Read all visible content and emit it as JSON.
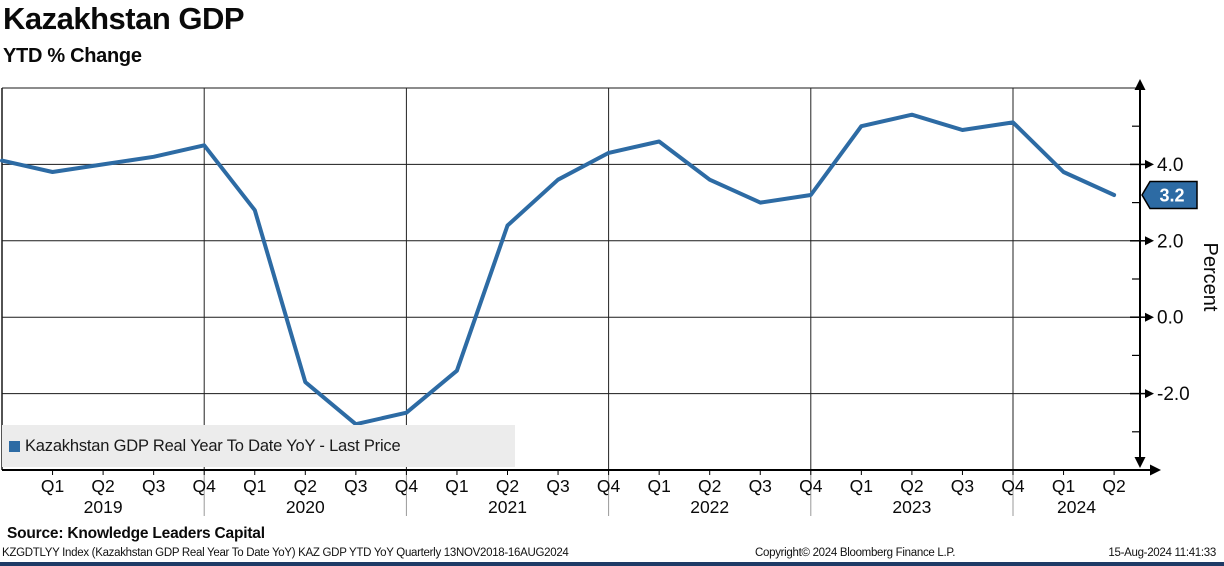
{
  "header": {
    "title": "Kazakhstan GDP",
    "subtitle": "YTD % Change"
  },
  "chart_data": {
    "type": "line",
    "title": "Kazakhstan GDP",
    "subtitle": "YTD % Change",
    "ylabel": "Percent",
    "ylim": [
      -4.0,
      6.0
    ],
    "y_major_ticks": [
      4.0,
      2.0,
      0.0,
      -2.0
    ],
    "y_minor_ticks": [
      5.0,
      3.0,
      1.0,
      -1.0,
      -3.0
    ],
    "grid": true,
    "legend_position": "bottom-left",
    "line_color": "#2d6ba4",
    "last_price": "3.2",
    "series": [
      {
        "name": "Kazakhstan GDP Real Year To Date YoY - Last Price",
        "data": [
          {
            "period": "Q4 2018",
            "value": 4.1
          },
          {
            "period": "Q1 2019",
            "value": 3.8
          },
          {
            "period": "Q2 2019",
            "value": 4.0
          },
          {
            "period": "Q3 2019",
            "value": 4.2
          },
          {
            "period": "Q4 2019",
            "value": 4.5
          },
          {
            "period": "Q1 2020",
            "value": 2.8
          },
          {
            "period": "Q2 2020",
            "value": -1.7
          },
          {
            "period": "Q3 2020",
            "value": -2.8
          },
          {
            "period": "Q4 2020",
            "value": -2.5
          },
          {
            "period": "Q1 2021",
            "value": -1.4
          },
          {
            "period": "Q2 2021",
            "value": 2.4
          },
          {
            "period": "Q3 2021",
            "value": 3.6
          },
          {
            "period": "Q4 2021",
            "value": 4.3
          },
          {
            "period": "Q1 2022",
            "value": 4.6
          },
          {
            "period": "Q2 2022",
            "value": 3.6
          },
          {
            "period": "Q3 2022",
            "value": 3.0
          },
          {
            "period": "Q4 2022",
            "value": 3.2
          },
          {
            "period": "Q1 2023",
            "value": 5.0
          },
          {
            "period": "Q2 2023",
            "value": 5.3
          },
          {
            "period": "Q3 2023",
            "value": 4.9
          },
          {
            "period": "Q4 2023",
            "value": 5.1
          },
          {
            "period": "Q1 2024",
            "value": 3.8
          },
          {
            "period": "Q2 2024",
            "value": 3.2
          }
        ]
      }
    ]
  },
  "footer": {
    "source": "Source: Knowledge Leaders Capital",
    "ticker_line": "KZGDTLYY Index (Kazakhstan GDP Real Year To Date YoY) KAZ GDP YTD YoY  Quarterly 13NOV2018-16AUG2024",
    "copyright": "Copyright© 2024 Bloomberg Finance L.P.",
    "timestamp": "15-Aug-2024 11:41:33"
  }
}
